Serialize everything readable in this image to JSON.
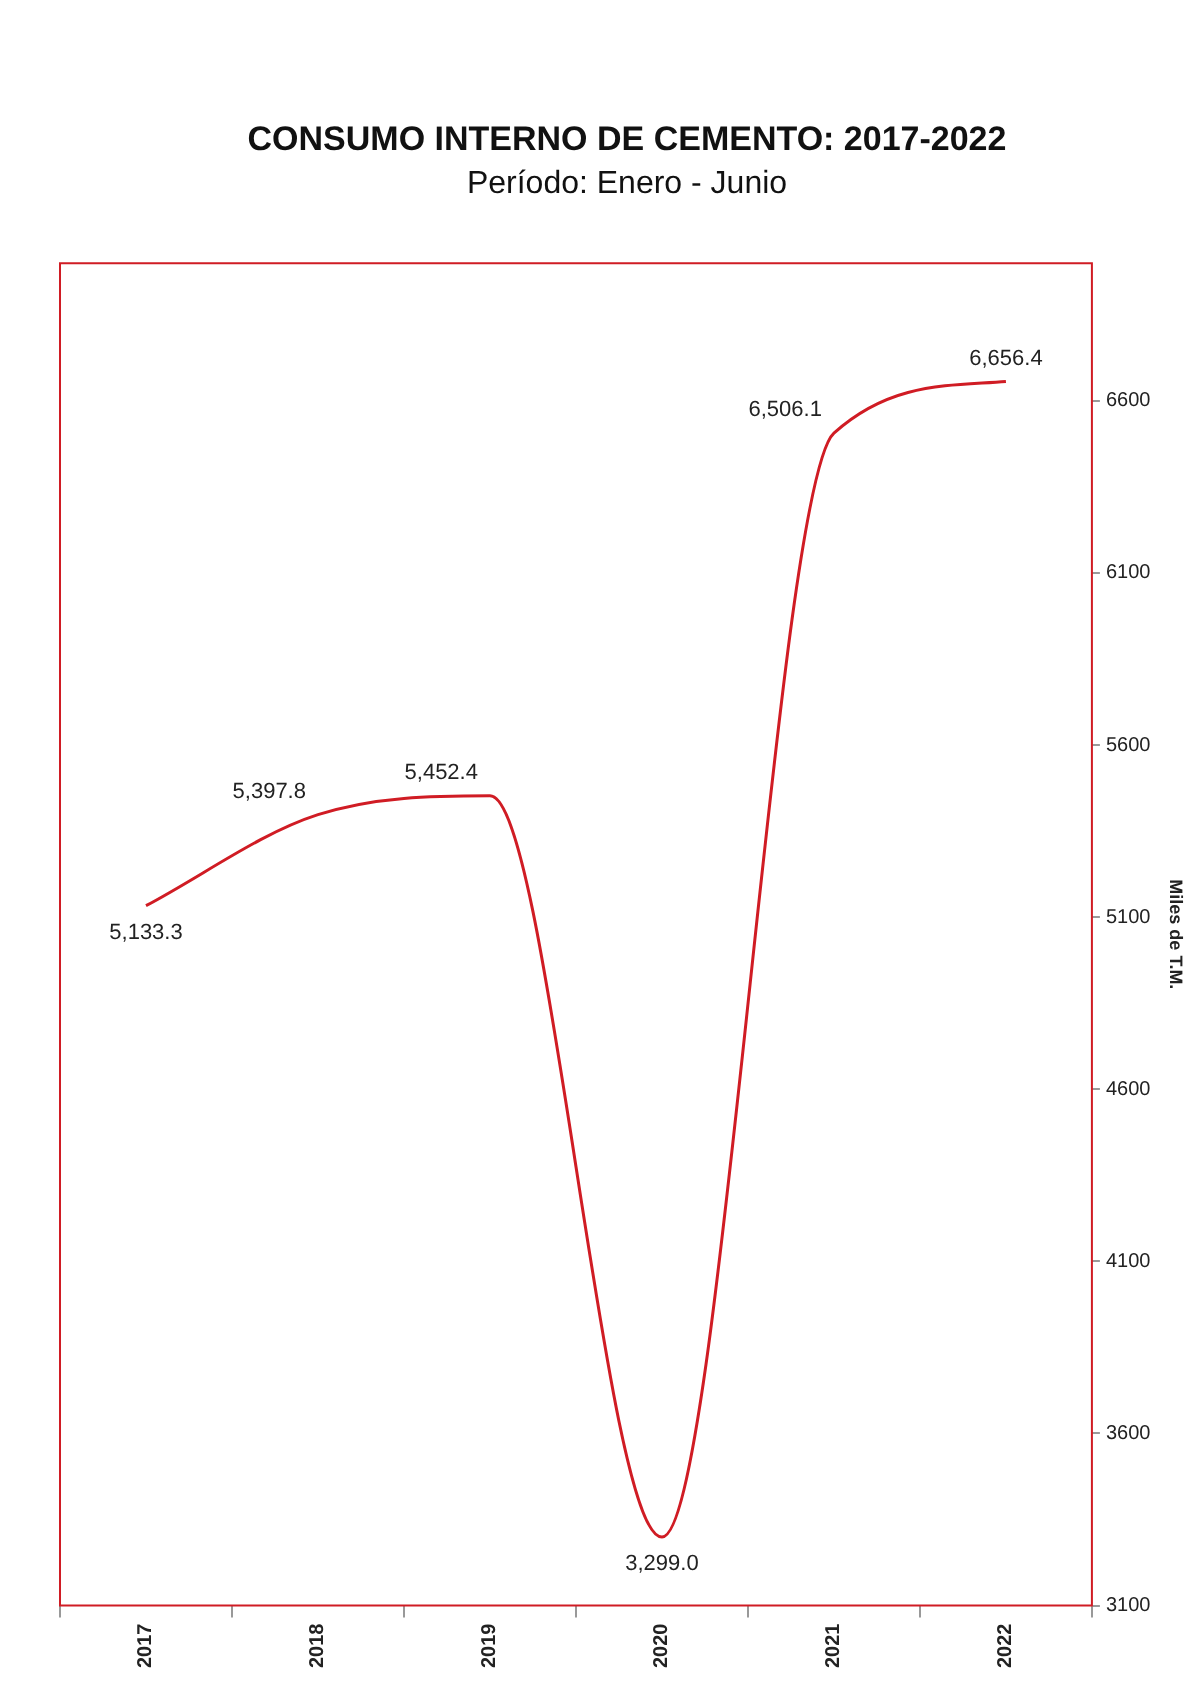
{
  "chart_data": {
    "type": "line",
    "title": "CONSUMO INTERNO DE CEMENTO: 2017-2022",
    "subtitle": "Período: Enero - Junio",
    "ylabel": "Miles de T.M.",
    "categories": [
      "2017",
      "2018",
      "2019",
      "2020",
      "2021",
      "2022"
    ],
    "series": [
      {
        "color": "#d01c24",
        "values": [
          5133.3,
          5397.8,
          5452.4,
          3299.0,
          6506.1,
          6656.4
        ],
        "value_labels": [
          "5,133.3",
          "5,397.8",
          "5,452.4",
          "3,299.0",
          "6,506.1",
          "6,656.4"
        ]
      }
    ],
    "ylim": [
      3100,
      7000
    ],
    "yticks": [
      3100,
      3600,
      4100,
      4600,
      5100,
      5600,
      6100,
      6600
    ],
    "grid": false,
    "legend": false,
    "marker": "none",
    "line_style": "solid"
  }
}
